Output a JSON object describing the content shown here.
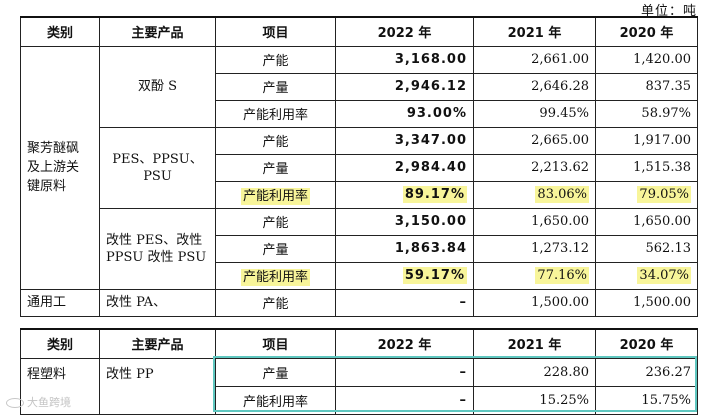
{
  "unit": "单位：吨",
  "headers": {
    "category": "类别",
    "product": "主要产品",
    "item": "项目",
    "y2022": "2022 年",
    "y2021": "2021 年",
    "y2020": "2020 年"
  },
  "table1": {
    "category": "聚芳醚砜及上游关键原料",
    "bisphenol_s": {
      "name": "双酚 S",
      "rows": [
        {
          "item": "产能",
          "v2022": "3,168.00",
          "v2021": "2,661.00",
          "v2020": "1,420.00"
        },
        {
          "item": "产量",
          "v2022": "2,946.12",
          "v2021": "2,646.28",
          "v2020": "837.35"
        },
        {
          "item": "产能利用率",
          "v2022": "93.00%",
          "v2021": "99.45%",
          "v2020": "58.97%"
        }
      ]
    },
    "pes_ppsu_psu": {
      "name": "PES、PPSU、PSU",
      "rows": [
        {
          "item": "产能",
          "v2022": "3,347.00",
          "v2021": "2,665.00",
          "v2020": "1,917.00"
        },
        {
          "item": "产量",
          "v2022": "2,984.40",
          "v2021": "2,213.62",
          "v2020": "1,515.38"
        },
        {
          "item": "产能利用率",
          "v2022": "89.17%",
          "v2021": "83.06%",
          "v2020": "79.05%"
        }
      ]
    },
    "modified": {
      "name": "改性 PES、改性 PPSU 改性 PSU",
      "rows": [
        {
          "item": "产能",
          "v2022": "3,150.00",
          "v2021": "1,650.00",
          "v2020": "1,650.00"
        },
        {
          "item": "产量",
          "v2022": "1,863.84",
          "v2021": "1,273.12",
          "v2020": "562.13"
        },
        {
          "item": "产能利用率",
          "v2022": "59.17%",
          "v2021": "77.16%",
          "v2020": "34.07%"
        }
      ]
    },
    "general": {
      "category": "通用工",
      "name": "改性 PA、",
      "row": {
        "item": "产能",
        "v2022": "–",
        "v2021": "1,500.00",
        "v2020": "1,500.00"
      }
    }
  },
  "table2": {
    "category": "程塑料",
    "name": "改性 PP",
    "rows": [
      {
        "item": "产量",
        "v2022": "–",
        "v2021": "228.80",
        "v2020": "236.27"
      },
      {
        "item": "产能利用率",
        "v2022": "–",
        "v2021": "15.25%",
        "v2020": "15.75%"
      }
    ]
  },
  "watermark": "大鱼跨境",
  "highlight_color": "#f8f59a",
  "box_color": "#5fc7c0"
}
